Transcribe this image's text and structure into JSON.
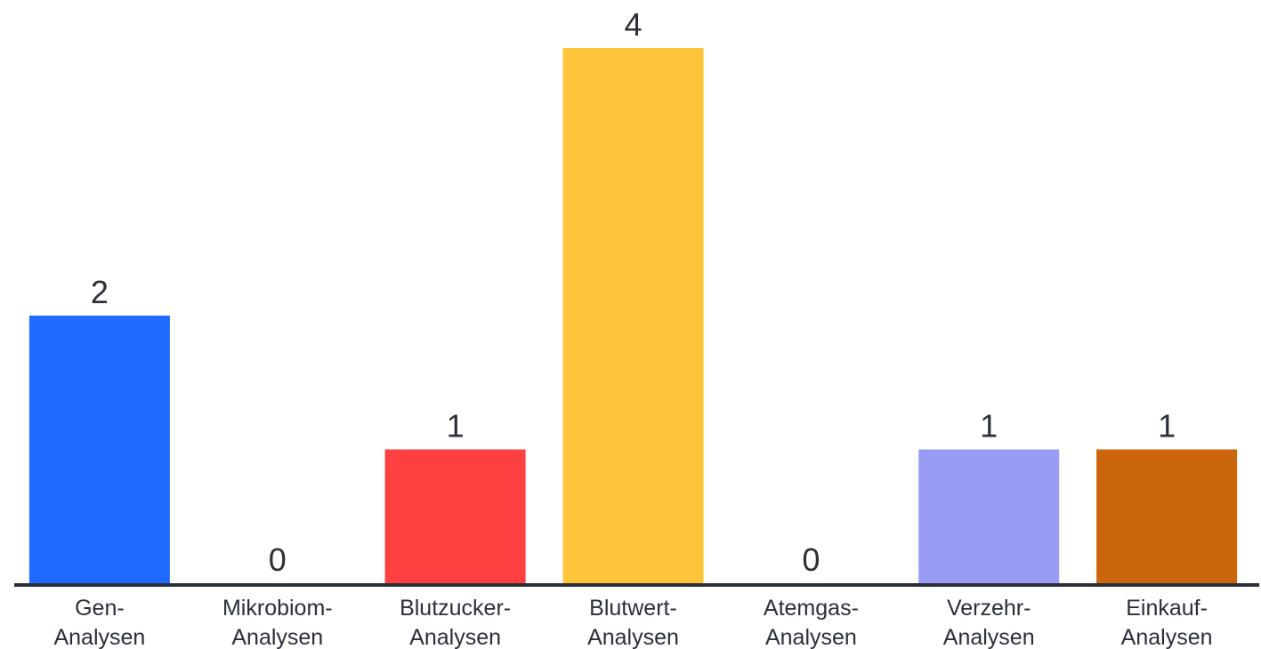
{
  "chart_data": {
    "type": "bar",
    "categories": [
      [
        "Gen-",
        "Analysen"
      ],
      [
        "Mikrobiom-",
        "Analysen"
      ],
      [
        "Blutzucker-",
        "Analysen"
      ],
      [
        "Blutwert-",
        "Analysen"
      ],
      [
        "Atemgas-",
        "Analysen"
      ],
      [
        "Verzehr-",
        "Analysen"
      ],
      [
        "Einkauf-",
        "Analysen"
      ]
    ],
    "values": [
      2,
      0,
      1,
      4,
      0,
      1,
      1
    ],
    "data_labels": [
      "2",
      "0",
      "1",
      "4",
      "0",
      "1",
      "1"
    ],
    "colors": [
      "#1f6bff",
      "#ffffff",
      "#ff4040",
      "#fdc43a",
      "#ffffff",
      "#989cf5",
      "#cc660c"
    ],
    "axis_color": "#2b2f3a",
    "title": "",
    "xlabel": "",
    "ylabel": "",
    "ylim": [
      0,
      4
    ],
    "grid": false,
    "legend": "none"
  }
}
